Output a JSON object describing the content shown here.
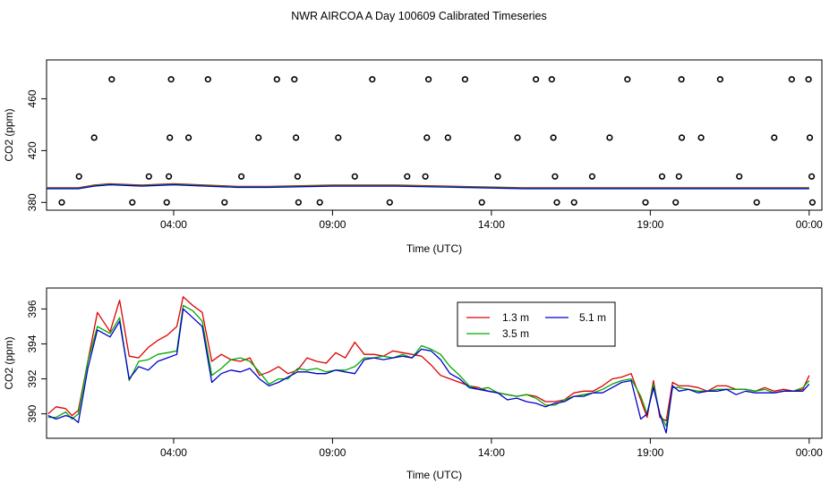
{
  "title": "NWR AIRCOA A  Day 100609  Calibrated Timeseries",
  "colors": {
    "s13": "#dd0000",
    "s35": "#00aa00",
    "s51": "#0000cc"
  },
  "chart_data": [
    {
      "type": "scatter+line",
      "xlabel": "Time (UTC)",
      "ylabel": "CO2 (ppm)",
      "xlim": [
        0,
        24.4
      ],
      "ylim": [
        374,
        490
      ],
      "xticks": [
        {
          "v": 4,
          "label": "04:00"
        },
        {
          "v": 9,
          "label": "09:00"
        },
        {
          "v": 14,
          "label": "14:00"
        },
        {
          "v": 19,
          "label": "19:00"
        },
        {
          "v": 24,
          "label": "00:00"
        }
      ],
      "yticks": [
        {
          "v": 380,
          "label": "380"
        },
        {
          "v": 420,
          "label": "420"
        },
        {
          "v": 460,
          "label": "460"
        }
      ],
      "calibration_points": [
        [
          0.48,
          380
        ],
        [
          1.02,
          400
        ],
        [
          1.5,
          430
        ],
        [
          2.05,
          475
        ],
        [
          2.7,
          380
        ],
        [
          3.22,
          400
        ],
        [
          3.78,
          380
        ],
        [
          3.85,
          400
        ],
        [
          3.88,
          430
        ],
        [
          3.92,
          475
        ],
        [
          4.47,
          430
        ],
        [
          5.08,
          475
        ],
        [
          5.6,
          380
        ],
        [
          6.13,
          400
        ],
        [
          6.67,
          430
        ],
        [
          7.25,
          475
        ],
        [
          7.8,
          475
        ],
        [
          7.85,
          430
        ],
        [
          7.9,
          400
        ],
        [
          7.93,
          380
        ],
        [
          8.6,
          380
        ],
        [
          9.18,
          430
        ],
        [
          9.7,
          400
        ],
        [
          10.25,
          475
        ],
        [
          10.8,
          380
        ],
        [
          11.35,
          400
        ],
        [
          11.92,
          400
        ],
        [
          11.97,
          430
        ],
        [
          12.02,
          475
        ],
        [
          12.63,
          430
        ],
        [
          13.17,
          475
        ],
        [
          13.7,
          380
        ],
        [
          14.2,
          400
        ],
        [
          14.82,
          430
        ],
        [
          15.4,
          475
        ],
        [
          15.9,
          475
        ],
        [
          15.95,
          430
        ],
        [
          16.0,
          400
        ],
        [
          16.06,
          380
        ],
        [
          16.6,
          380
        ],
        [
          17.17,
          400
        ],
        [
          17.72,
          430
        ],
        [
          18.28,
          475
        ],
        [
          18.85,
          380
        ],
        [
          19.37,
          400
        ],
        [
          19.8,
          380
        ],
        [
          19.9,
          400
        ],
        [
          19.98,
          475
        ],
        [
          19.99,
          430
        ],
        [
          20.6,
          430
        ],
        [
          21.2,
          475
        ],
        [
          21.8,
          400
        ],
        [
          22.35,
          380
        ],
        [
          22.9,
          430
        ],
        [
          23.45,
          475
        ],
        [
          23.98,
          475
        ],
        [
          24.02,
          430
        ],
        [
          24.08,
          400
        ],
        [
          24.1,
          380
        ]
      ],
      "baseline": {
        "x": [
          0,
          1,
          1.5,
          2,
          3,
          4,
          5,
          6,
          7,
          9,
          11,
          13,
          15,
          17,
          19,
          21,
          23,
          24
        ],
        "y": [
          391,
          391,
          393,
          394,
          393,
          394,
          393,
          392,
          392,
          393,
          393,
          392,
          391,
          391,
          391,
          391,
          391,
          391
        ]
      }
    },
    {
      "type": "line",
      "xlabel": "Time (UTC)",
      "ylabel": "CO2 (ppm)",
      "xlim": [
        0,
        24.4
      ],
      "ylim": [
        388.6,
        397.2
      ],
      "xticks": [
        {
          "v": 4,
          "label": "04:00"
        },
        {
          "v": 9,
          "label": "09:00"
        },
        {
          "v": 14,
          "label": "14:00"
        },
        {
          "v": 19,
          "label": "19:00"
        },
        {
          "v": 24,
          "label": "00:00"
        }
      ],
      "yticks": [
        {
          "v": 390,
          "label": "390"
        },
        {
          "v": 392,
          "label": "392"
        },
        {
          "v": 394,
          "label": "394"
        },
        {
          "v": 396,
          "label": "396"
        }
      ],
      "legend": {
        "position": "top-center"
      },
      "x": [
        0.05,
        0.3,
        0.6,
        0.8,
        1.0,
        1.3,
        1.6,
        2.0,
        2.3,
        2.6,
        2.9,
        3.2,
        3.5,
        3.8,
        4.1,
        4.3,
        4.6,
        4.9,
        5.2,
        5.5,
        5.8,
        6.1,
        6.4,
        6.7,
        7.0,
        7.3,
        7.6,
        7.9,
        8.2,
        8.5,
        8.8,
        9.1,
        9.4,
        9.7,
        10.0,
        10.3,
        10.6,
        10.9,
        11.2,
        11.5,
        11.8,
        12.1,
        12.4,
        12.7,
        13.0,
        13.3,
        13.6,
        13.9,
        14.2,
        14.5,
        14.8,
        15.1,
        15.4,
        15.7,
        16.0,
        16.3,
        16.6,
        16.9,
        17.2,
        17.5,
        17.8,
        18.1,
        18.4,
        18.7,
        18.9,
        19.1,
        19.3,
        19.5,
        19.7,
        19.9,
        20.2,
        20.5,
        20.8,
        21.1,
        21.4,
        21.7,
        22.0,
        22.3,
        22.6,
        22.9,
        23.2,
        23.5,
        23.8,
        24.0
      ],
      "series": [
        {
          "name": "1.3 m",
          "color": "#dd0000",
          "values": [
            390.0,
            390.4,
            390.3,
            389.9,
            390.2,
            393.0,
            395.8,
            394.7,
            396.5,
            393.3,
            393.2,
            393.8,
            394.2,
            394.5,
            395.0,
            396.7,
            396.2,
            395.8,
            393.0,
            393.4,
            393.1,
            393.0,
            393.2,
            392.2,
            392.4,
            392.7,
            392.3,
            392.5,
            393.2,
            393.0,
            392.9,
            393.5,
            393.2,
            394.1,
            393.4,
            393.4,
            393.3,
            393.6,
            393.5,
            393.4,
            393.3,
            392.8,
            392.2,
            392.0,
            391.8,
            391.6,
            391.5,
            391.3,
            391.2,
            391.1,
            391.0,
            391.1,
            391.0,
            390.7,
            390.7,
            390.8,
            391.2,
            391.3,
            391.3,
            391.6,
            392.0,
            392.1,
            392.3,
            390.8,
            389.8,
            391.9,
            389.8,
            389.6,
            391.8,
            391.6,
            391.6,
            391.5,
            391.3,
            391.6,
            391.6,
            391.4,
            391.4,
            391.3,
            391.5,
            391.3,
            391.4,
            391.3,
            391.4,
            392.2
          ]
        },
        {
          "name": "3.5 m",
          "color": "#00aa00",
          "values": [
            389.8,
            389.8,
            390.1,
            389.7,
            390.0,
            393.0,
            395.0,
            394.6,
            395.5,
            391.9,
            393.0,
            393.1,
            393.4,
            393.5,
            393.6,
            396.2,
            395.9,
            395.3,
            392.2,
            392.6,
            393.1,
            393.2,
            393.0,
            392.4,
            391.7,
            392.0,
            392.0,
            392.6,
            392.5,
            392.6,
            392.4,
            392.5,
            392.5,
            392.7,
            393.2,
            393.2,
            393.3,
            393.2,
            393.4,
            393.2,
            393.9,
            393.7,
            393.4,
            392.7,
            392.2,
            391.6,
            391.4,
            391.5,
            391.2,
            391.1,
            391.0,
            391.1,
            390.9,
            390.5,
            390.5,
            390.8,
            391.0,
            391.1,
            391.2,
            391.4,
            391.7,
            391.9,
            392.0,
            391.0,
            390.0,
            391.7,
            390.0,
            389.3,
            391.5,
            391.5,
            391.4,
            391.3,
            391.3,
            391.4,
            391.4,
            391.4,
            391.4,
            391.3,
            391.4,
            391.2,
            391.3,
            391.3,
            391.5,
            391.9
          ]
        },
        {
          "name": "5.1 m",
          "color": "#0000cc",
          "values": [
            389.9,
            389.7,
            389.9,
            389.8,
            389.5,
            392.6,
            394.8,
            394.4,
            395.3,
            392.0,
            392.7,
            392.5,
            393.0,
            393.2,
            393.4,
            396.0,
            395.5,
            395.0,
            391.8,
            392.3,
            392.5,
            392.4,
            392.6,
            392.0,
            391.6,
            391.8,
            392.1,
            392.4,
            392.4,
            392.3,
            392.3,
            392.5,
            392.4,
            392.3,
            393.1,
            393.2,
            393.1,
            393.2,
            393.3,
            393.2,
            393.7,
            393.6,
            393.1,
            392.3,
            392.0,
            391.5,
            391.4,
            391.3,
            391.2,
            390.8,
            390.9,
            390.7,
            390.6,
            390.4,
            390.6,
            390.7,
            391.0,
            391.0,
            391.2,
            391.2,
            391.5,
            391.8,
            391.9,
            389.7,
            390.0,
            391.5,
            390.0,
            388.9,
            391.6,
            391.3,
            391.4,
            391.2,
            391.3,
            391.3,
            391.4,
            391.1,
            391.3,
            391.2,
            391.2,
            391.2,
            391.3,
            391.3,
            391.3,
            391.7
          ]
        }
      ]
    }
  ]
}
